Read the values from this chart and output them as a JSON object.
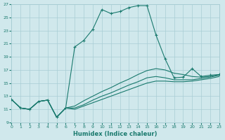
{
  "xlabel": "Humidex (Indice chaleur)",
  "bg_color": "#d0e8ec",
  "grid_color": "#a8cdd4",
  "line_color": "#1a7a6e",
  "xlim": [
    0,
    23
  ],
  "ylim": [
    9,
    27
  ],
  "xticks": [
    0,
    1,
    2,
    3,
    4,
    5,
    6,
    7,
    8,
    9,
    10,
    11,
    12,
    13,
    14,
    15,
    16,
    17,
    18,
    19,
    20,
    21,
    22,
    23
  ],
  "yticks": [
    9,
    11,
    13,
    15,
    17,
    19,
    21,
    23,
    25,
    27
  ],
  "line1_x": [
    0,
    1,
    2,
    3,
    4,
    5,
    6,
    7,
    8,
    9,
    10,
    11,
    12,
    13,
    14,
    15,
    16,
    17,
    18,
    19,
    20,
    21,
    22,
    23
  ],
  "line1_y": [
    12.5,
    11.2,
    11.0,
    12.2,
    12.4,
    9.8,
    11.2,
    20.5,
    21.5,
    23.2,
    26.2,
    25.6,
    25.9,
    26.5,
    26.8,
    26.8,
    22.3,
    18.7,
    15.8,
    15.9,
    17.2,
    16.0,
    16.2,
    16.3
  ],
  "line2_x": [
    0,
    1,
    2,
    3,
    4,
    5,
    6,
    7,
    8,
    9,
    10,
    11,
    12,
    13,
    14,
    15,
    16,
    17,
    18,
    19,
    20,
    21,
    22,
    23
  ],
  "line2_y": [
    12.5,
    11.2,
    11.0,
    12.2,
    12.4,
    9.8,
    11.2,
    11.5,
    12.3,
    13.0,
    13.7,
    14.3,
    15.0,
    15.6,
    16.3,
    16.9,
    17.2,
    17.0,
    16.5,
    16.3,
    16.0,
    15.9,
    16.0,
    16.3
  ],
  "line3_x": [
    0,
    1,
    2,
    3,
    4,
    5,
    6,
    7,
    8,
    9,
    10,
    11,
    12,
    13,
    14,
    15,
    16,
    17,
    18,
    19,
    20,
    21,
    22,
    23
  ],
  "line3_y": [
    12.5,
    11.2,
    11.0,
    12.2,
    12.4,
    9.8,
    11.2,
    11.2,
    11.7,
    12.4,
    13.0,
    13.5,
    14.1,
    14.7,
    15.2,
    15.8,
    16.0,
    15.8,
    15.5,
    15.5,
    15.5,
    15.7,
    15.9,
    16.2
  ],
  "line4_x": [
    0,
    1,
    2,
    3,
    4,
    5,
    6,
    7,
    8,
    9,
    10,
    11,
    12,
    13,
    14,
    15,
    16,
    17,
    18,
    19,
    20,
    21,
    22,
    23
  ],
  "line4_y": [
    12.5,
    11.2,
    11.0,
    12.2,
    12.4,
    9.8,
    11.2,
    11.0,
    11.5,
    12.0,
    12.5,
    13.0,
    13.5,
    14.0,
    14.5,
    15.0,
    15.3,
    15.3,
    15.2,
    15.2,
    15.3,
    15.5,
    15.7,
    16.0
  ]
}
